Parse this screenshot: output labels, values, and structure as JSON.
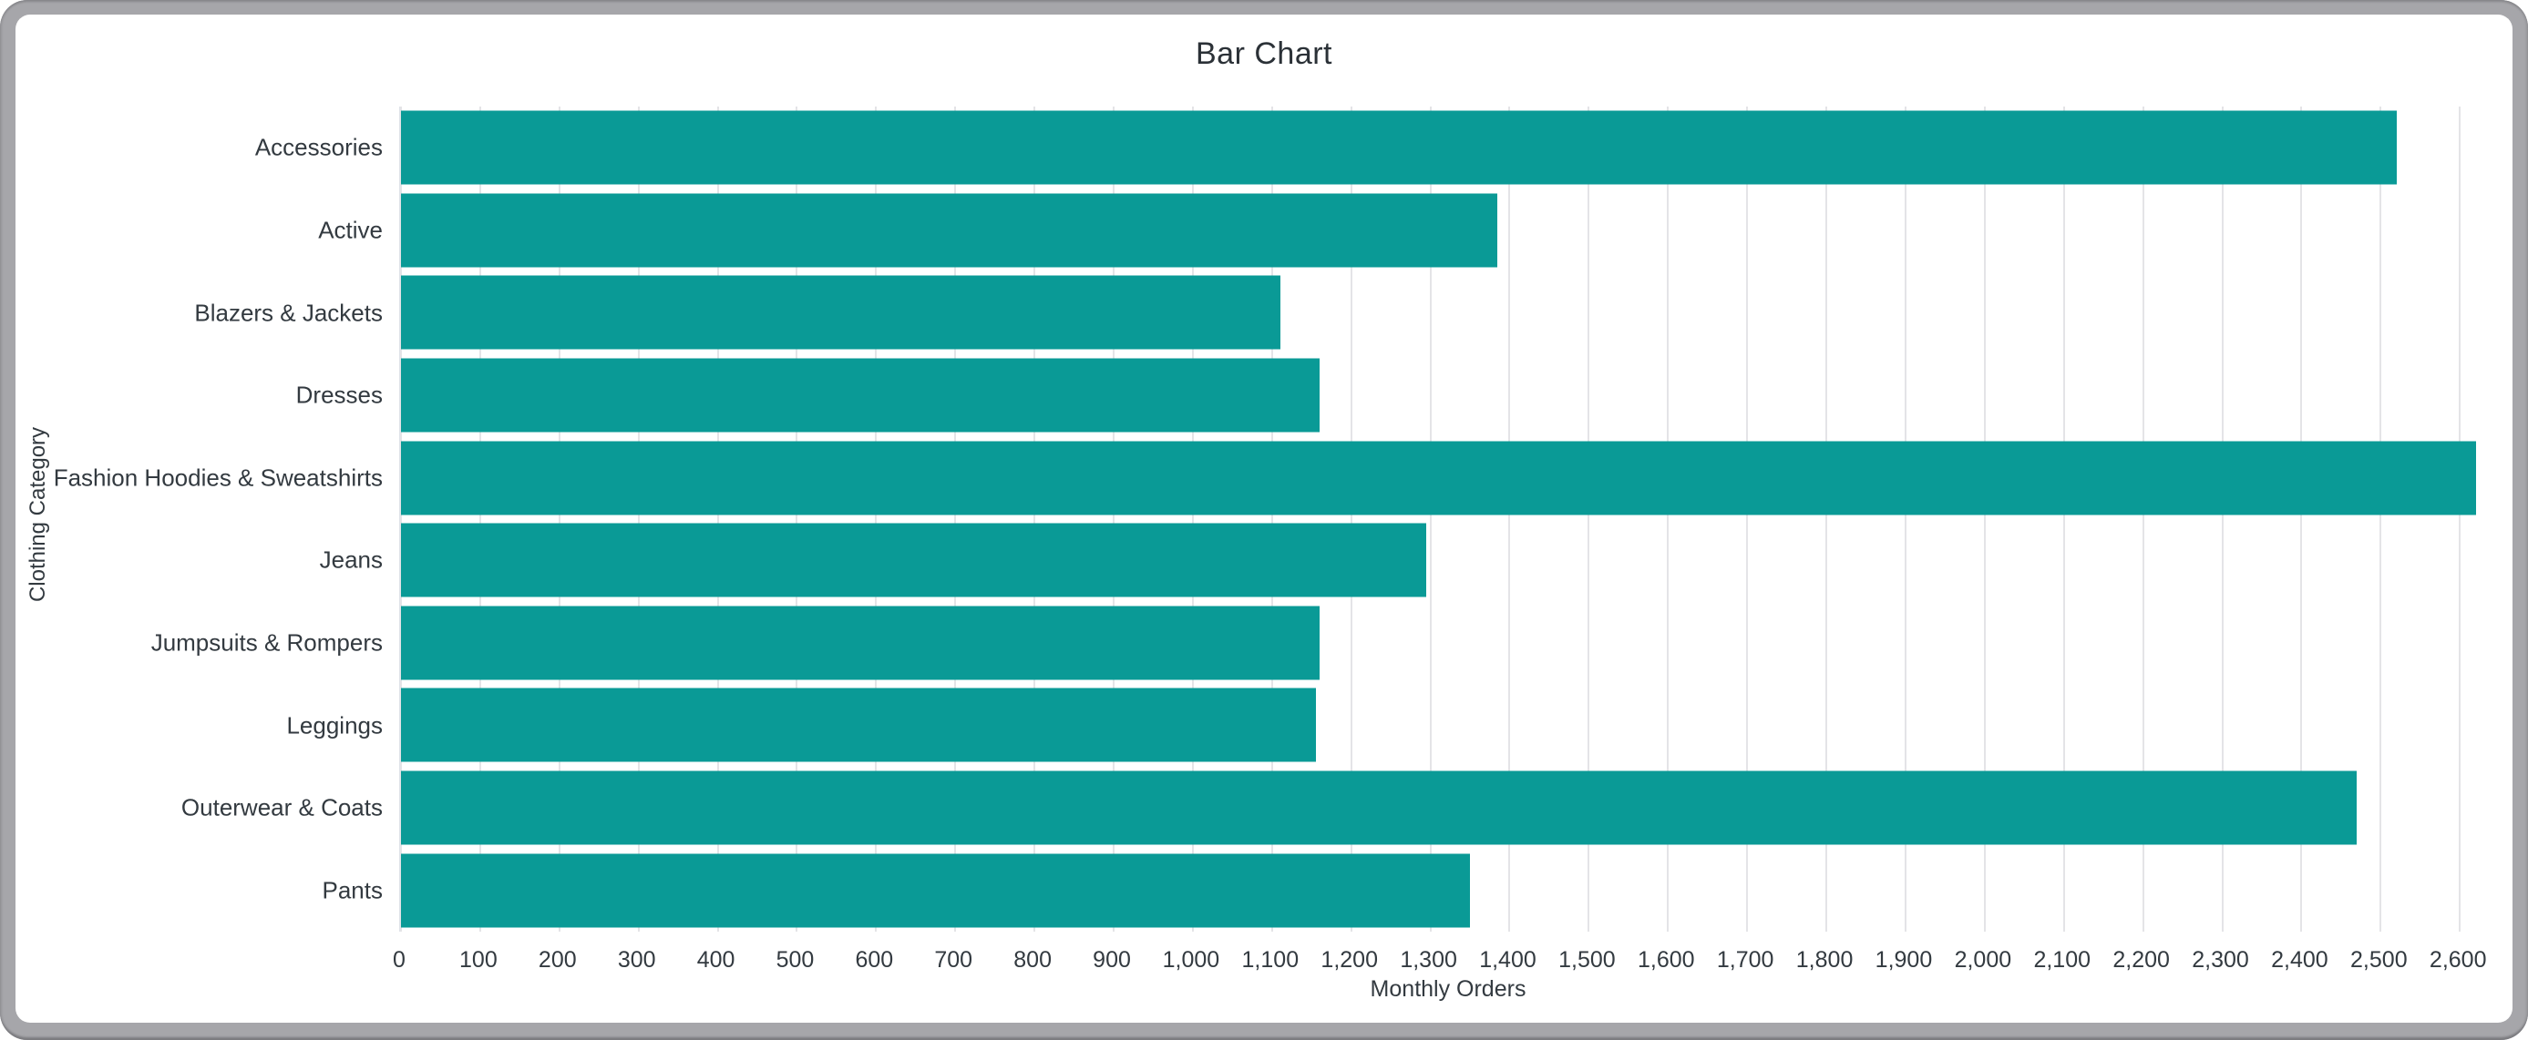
{
  "window": {
    "frame_color": "#a6a6aa",
    "background_color": "#ffffff"
  },
  "chart_data": {
    "type": "bar",
    "orientation": "horizontal",
    "title": "Bar Chart",
    "xlabel": "Monthly Orders",
    "ylabel": "Clothing Category",
    "categories": [
      "Accessories",
      "Active",
      "Blazers & Jackets",
      "Dresses",
      "Fashion Hoodies & Sweatshirts",
      "Jeans",
      "Jumpsuits & Rompers",
      "Leggings",
      "Outerwear & Coats",
      "Pants"
    ],
    "values": [
      2520,
      1385,
      1110,
      1160,
      2620,
      1295,
      1160,
      1155,
      2470,
      1350
    ],
    "xlim": [
      0,
      2655
    ],
    "xticks": [
      0,
      100,
      200,
      300,
      400,
      500,
      600,
      700,
      800,
      900,
      1000,
      1100,
      1200,
      1300,
      1400,
      1500,
      1600,
      1700,
      1800,
      1900,
      2000,
      2100,
      2200,
      2300,
      2400,
      2500,
      2600
    ],
    "tick_label_format": "comma",
    "grid": true,
    "legend": false,
    "bar_color": "#0a9a96",
    "gridline_color": "#e4e4e7"
  }
}
